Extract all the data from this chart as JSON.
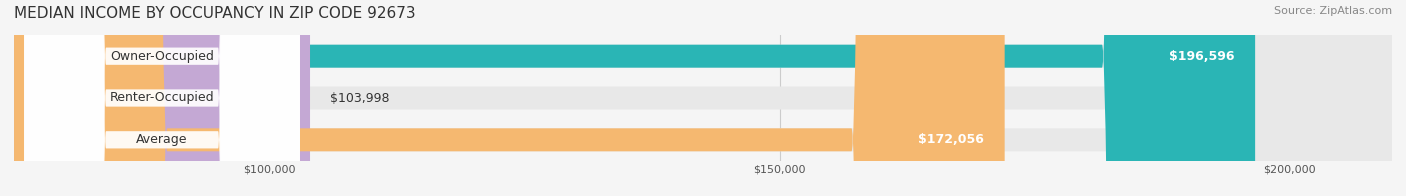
{
  "title": "MEDIAN INCOME BY OCCUPANCY IN ZIP CODE 92673",
  "source": "Source: ZipAtlas.com",
  "categories": [
    "Owner-Occupied",
    "Renter-Occupied",
    "Average"
  ],
  "values": [
    196596,
    103998,
    172056
  ],
  "bar_colors": [
    "#2ab5b5",
    "#c4a8d4",
    "#f5b870"
  ],
  "label_colors": [
    "#ffffff",
    "#333333",
    "#ffffff"
  ],
  "value_labels": [
    "$196,596",
    "$103,998",
    "$172,056"
  ],
  "xmin": 75000,
  "xmax": 210000,
  "xticks": [
    100000,
    150000,
    200000
  ],
  "xtick_labels": [
    "$100,000",
    "$150,000",
    "$200,000"
  ],
  "bar_height": 0.55,
  "background_color": "#f5f5f5",
  "bar_background_color": "#e8e8e8",
  "title_fontsize": 11,
  "source_fontsize": 8,
  "label_fontsize": 9,
  "value_fontsize": 9
}
